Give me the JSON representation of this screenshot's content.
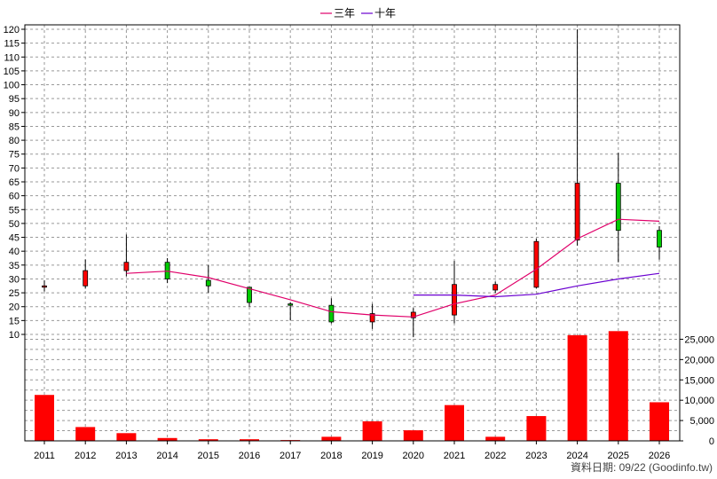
{
  "chart_data": [
    {
      "type": "candlestick",
      "title": "",
      "x": [
        "2011",
        "2012",
        "2013",
        "2014",
        "2015",
        "2016",
        "2017",
        "2018",
        "2019",
        "2020",
        "2021",
        "2022",
        "2023",
        "2024",
        "2025",
        "2026"
      ],
      "ylim": [
        10,
        120
      ],
      "yticks": [
        10,
        15,
        20,
        25,
        30,
        35,
        40,
        45,
        50,
        55,
        60,
        65,
        70,
        75,
        80,
        85,
        90,
        95,
        100,
        105,
        110,
        115,
        120
      ],
      "grid": true,
      "legend_placement": "top-center",
      "candles": [
        {
          "x": "2011",
          "open": 27.5,
          "high": 29.5,
          "low": 25.5,
          "close": 27.5
        },
        {
          "x": "2012",
          "open": 27.5,
          "high": 37,
          "low": 26.5,
          "close": 33
        },
        {
          "x": "2013",
          "open": 33,
          "high": 46,
          "low": 31,
          "close": 36
        },
        {
          "x": "2014",
          "open": 36,
          "high": 37.5,
          "low": 28.5,
          "close": 30
        },
        {
          "x": "2015",
          "open": 29.5,
          "high": 35,
          "low": 25,
          "close": 27.5
        },
        {
          "x": "2016",
          "open": 27,
          "high": 27,
          "low": 20,
          "close": 21.5
        },
        {
          "x": "2017",
          "open": 21,
          "high": 21.5,
          "low": 15,
          "close": 20.5
        },
        {
          "x": "2018",
          "open": 20.5,
          "high": 23,
          "low": 14,
          "close": 14.5
        },
        {
          "x": "2019",
          "open": 14.5,
          "high": 21,
          "low": 12,
          "close": 17.5
        },
        {
          "x": "2020",
          "open": 16,
          "high": 19.5,
          "low": 9,
          "close": 18
        },
        {
          "x": "2021",
          "open": 17,
          "high": 36.5,
          "low": 14,
          "close": 28
        },
        {
          "x": "2022",
          "open": 26,
          "high": 29,
          "low": 25,
          "close": 28
        },
        {
          "x": "2023",
          "open": 27,
          "high": 44.5,
          "low": 26.5,
          "close": 43.5
        },
        {
          "x": "2024",
          "open": 44,
          "high": 120,
          "low": 42,
          "close": 64.5
        },
        {
          "x": "2025",
          "open": 64.5,
          "high": 75.5,
          "low": 36,
          "close": 47.5
        },
        {
          "x": "2026",
          "open": 47.5,
          "high": 49,
          "low": 37,
          "close": 41.5
        }
      ],
      "up_color": "#ff0000",
      "down_color": "#00cc00",
      "series": [
        {
          "name": "三年",
          "color": "#e0006a",
          "x": [
            "2013",
            "2014",
            "2015",
            "2016",
            "2017",
            "2018",
            "2019",
            "2020",
            "2021",
            "2022",
            "2023",
            "2024",
            "2025",
            "2026"
          ],
          "values": [
            32,
            32.8,
            30.5,
            26.5,
            22.5,
            18.2,
            17,
            16.3,
            21,
            24.2,
            33.5,
            44.5,
            51.5,
            50.8
          ]
        },
        {
          "name": "十年",
          "color": "#6a00d0",
          "x": [
            "2020",
            "2021",
            "2022",
            "2023",
            "2024",
            "2025",
            "2026"
          ],
          "values": [
            24.2,
            24.2,
            23.6,
            24.5,
            27.5,
            30,
            32
          ]
        }
      ]
    },
    {
      "type": "bar",
      "x": [
        "2011",
        "2012",
        "2013",
        "2014",
        "2015",
        "2016",
        "2017",
        "2018",
        "2019",
        "2020",
        "2021",
        "2022",
        "2023",
        "2024",
        "2025",
        "2026"
      ],
      "values": [
        11300,
        3400,
        1900,
        700,
        400,
        400,
        200,
        1000,
        4800,
        2600,
        8800,
        1000,
        6100,
        26000,
        27000,
        9500
      ],
      "ylim": [
        0,
        27500
      ],
      "yticks": [
        0,
        5000,
        10000,
        15000,
        20000,
        25000
      ],
      "ytick_labels": [
        "0",
        "5,000",
        "10,000",
        "15,000",
        "20,000",
        "25,000"
      ],
      "color": "#ff0000"
    }
  ],
  "legend": {
    "items": [
      {
        "label": "三年",
        "color": "#e0006a"
      },
      {
        "label": "十年",
        "color": "#6a00d0"
      }
    ]
  },
  "footer": {
    "text": "資料日期: 09/22  (Goodinfo.tw)"
  }
}
